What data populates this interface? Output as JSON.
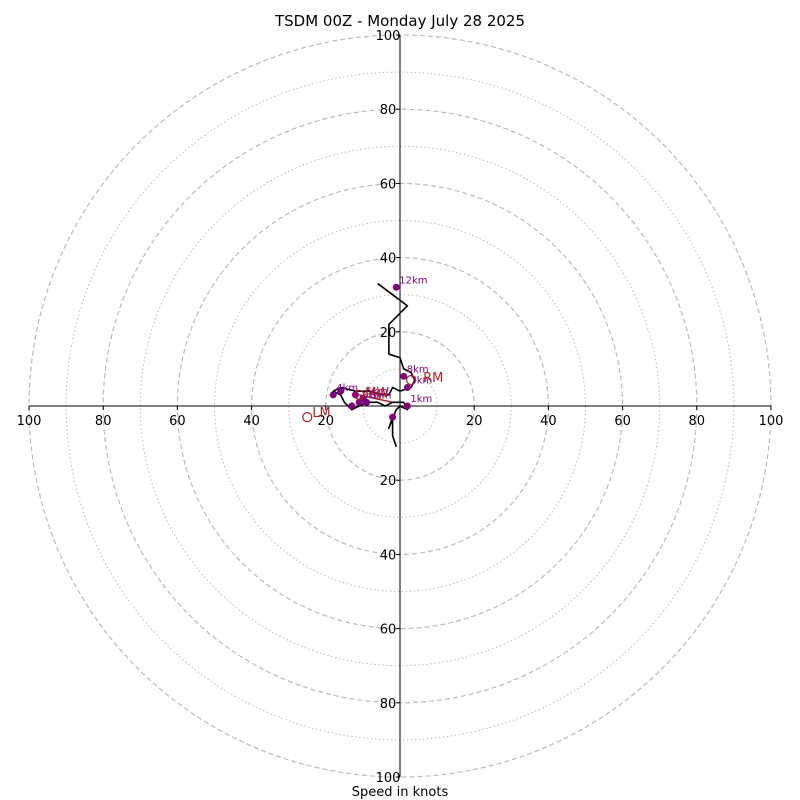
{
  "chart_data": {
    "type": "hodograph",
    "title": "TSDM 00Z - Monday July 28 2025",
    "xlabel": "Speed in knots",
    "range": [
      -100,
      100
    ],
    "ring_major": [
      20,
      40,
      60,
      80,
      100
    ],
    "ring_minor": [
      10,
      30,
      50,
      70,
      90
    ],
    "tick_values": [
      20,
      40,
      60,
      80,
      100
    ],
    "tick_labels": [
      "20",
      "40",
      "60",
      "80",
      "100"
    ],
    "colors": {
      "trace": "#000000",
      "marker": "#800080",
      "storm_motion": "#b22222",
      "grid": "#bbbbbb",
      "axis": "#000000"
    },
    "hodograph": [
      {
        "u": -1,
        "v": -11
      },
      {
        "u": -2,
        "v": -8
      },
      {
        "u": -2,
        "v": -3
      },
      {
        "u": -3,
        "v": -6
      },
      {
        "u": -1,
        "v": -1
      },
      {
        "u": 0,
        "v": 0
      },
      {
        "u": 2,
        "v": -1
      },
      {
        "u": 1,
        "v": 1
      },
      {
        "u": -2,
        "v": 1
      },
      {
        "u": -4,
        "v": 0
      },
      {
        "u": -6,
        "v": 1
      },
      {
        "u": -9,
        "v": 1
      },
      {
        "u": -11,
        "v": 0
      },
      {
        "u": -13,
        "v": -1
      },
      {
        "u": -15,
        "v": 1
      },
      {
        "u": -16,
        "v": 3
      },
      {
        "u": -18,
        "v": 4
      },
      {
        "u": -16,
        "v": 5
      },
      {
        "u": -12,
        "v": 4
      },
      {
        "u": -8,
        "v": 4
      },
      {
        "u": -5,
        "v": 3
      },
      {
        "u": -3,
        "v": 3
      },
      {
        "u": -2,
        "v": 5
      },
      {
        "u": 0,
        "v": 4
      },
      {
        "u": 3,
        "v": 5
      },
      {
        "u": 4,
        "v": 7
      },
      {
        "u": 3,
        "v": 9
      },
      {
        "u": 1,
        "v": 10
      },
      {
        "u": 0,
        "v": 13
      },
      {
        "u": -3,
        "v": 14
      },
      {
        "u": -3,
        "v": 22
      },
      {
        "u": 2,
        "v": 27
      },
      {
        "u": -2,
        "v": 30
      },
      {
        "u": -6,
        "v": 33
      }
    ],
    "height_markers": [
      {
        "label": "1km",
        "u": 2,
        "v": 0
      },
      {
        "label": "",
        "u": -2,
        "v": -3
      },
      {
        "label": "3km",
        "u": -9,
        "v": 1
      },
      {
        "label": "4km",
        "u": -18,
        "v": 3
      },
      {
        "label": "",
        "u": -13,
        "v": 0
      },
      {
        "label": "",
        "u": -12,
        "v": 3
      },
      {
        "label": "",
        "u": -16,
        "v": 4
      },
      {
        "label": "6km",
        "u": -11,
        "v": 1
      },
      {
        "label": "5km",
        "u": -10,
        "v": 2
      },
      {
        "label": "7km",
        "u": 2,
        "v": 5
      },
      {
        "label": "8km",
        "u": 1,
        "v": 8
      },
      {
        "label": "12km",
        "u": -1,
        "v": 32
      }
    ],
    "storm_motion": [
      {
        "label": "RM",
        "u": 3,
        "v": 7,
        "label_dx": 12,
        "label_dy": 2
      },
      {
        "label": "MW",
        "u": -11,
        "v": 3,
        "label_dx": 6,
        "label_dy": 2
      },
      {
        "label": "LM",
        "u": -25,
        "v": -3,
        "label_dx": 5,
        "label_dy": 0
      }
    ],
    "mean_wind_segment": [
      {
        "u": -11,
        "v": 3
      },
      {
        "u": -2,
        "v": 1
      }
    ]
  }
}
